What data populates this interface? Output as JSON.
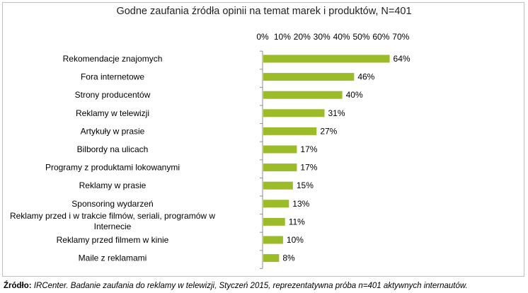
{
  "chart_data": {
    "type": "bar",
    "orientation": "horizontal",
    "title": "Godne zaufania źródła opinii na temat marek i produktów, N=401",
    "categories": [
      "Rekomendacje znajomych",
      "Fora internetowe",
      "Strony producentów",
      "Reklamy w telewizji",
      "Artykuły w prasie",
      "Bilbordy na ulicach",
      "Programy z produktami lokowanymi",
      "Reklamy w prasie",
      "Sponsoring wydarzeń",
      "Reklamy przed i w trakcie filmów, seriali, programów w Internecie",
      "Reklamy przed filmem w kinie",
      "Maile z reklamami"
    ],
    "category_lines": [
      [
        "Rekomendacje znajomych"
      ],
      [
        "Fora internetowe"
      ],
      [
        "Strony producentów"
      ],
      [
        "Reklamy w telewizji"
      ],
      [
        "Artykuły w prasie"
      ],
      [
        "Bilbordy na ulicach"
      ],
      [
        "Programy z produktami lokowanymi"
      ],
      [
        "Reklamy w prasie"
      ],
      [
        "Sponsoring wydarzeń"
      ],
      [
        "Reklamy przed i w trakcie filmów, seriali, programów w",
        "Internecie"
      ],
      [
        "Reklamy przed filmem w kinie"
      ],
      [
        "Maile z reklamami"
      ]
    ],
    "values": [
      64,
      46,
      40,
      31,
      27,
      17,
      17,
      15,
      13,
      11,
      10,
      8
    ],
    "value_labels": [
      "64%",
      "46%",
      "40%",
      "31%",
      "27%",
      "17%",
      "17%",
      "15%",
      "13%",
      "11%",
      "10%",
      "8%"
    ],
    "xlim": [
      0,
      70
    ],
    "x_ticks": [
      "0%",
      "10%",
      "20%",
      "30%",
      "40%",
      "50%",
      "60%",
      "70%"
    ],
    "x_axis_position": "top",
    "grid": false,
    "bar_color": "#9bbb29"
  },
  "source": {
    "label": "Źródło:",
    "text": "IRCenter. Badanie zaufania do reklamy w telewizji, Styczeń 2015, reprezentatywna próba n=401 aktywnych internautów."
  }
}
